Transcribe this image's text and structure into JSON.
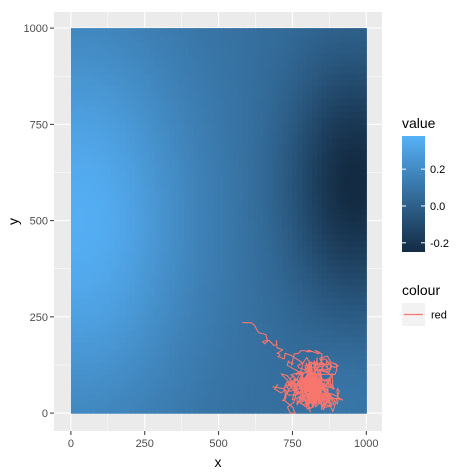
{
  "chart_data": {
    "type": "heatmap",
    "xlabel": "x",
    "ylabel": "y",
    "xlim": [
      0,
      1000
    ],
    "ylim": [
      0,
      1000
    ],
    "x_ticks": [
      0,
      250,
      500,
      750,
      1000
    ],
    "y_ticks": [
      0,
      250,
      500,
      750,
      1000
    ],
    "x_tick_labels": [
      "0",
      "250",
      "500",
      "750",
      "1000"
    ],
    "y_tick_labels": [
      "0",
      "250",
      "500",
      "750",
      "1000"
    ],
    "grid": true,
    "fill_legend": {
      "title": "value",
      "range": [
        -0.25,
        0.38
      ],
      "breaks": [
        0.2,
        0.0,
        -0.2
      ],
      "labels": [
        "0.2",
        "0.0",
        "-0.2"
      ],
      "low_color": "#132B43",
      "high_color": "#56B1F7"
    },
    "colour_legend": {
      "title": "colour",
      "entries": [
        {
          "label": "red",
          "color": "#F8766D"
        }
      ]
    },
    "path_series": {
      "name": "red",
      "color": "#F8766D",
      "center": [
        815,
        75
      ],
      "start": [
        580,
        235
      ],
      "x_extent": [
        580,
        920
      ],
      "y_extent": [
        0,
        235
      ]
    },
    "background": {
      "panel": "#EBEBEB",
      "grid_major": "#FFFFFF"
    }
  }
}
